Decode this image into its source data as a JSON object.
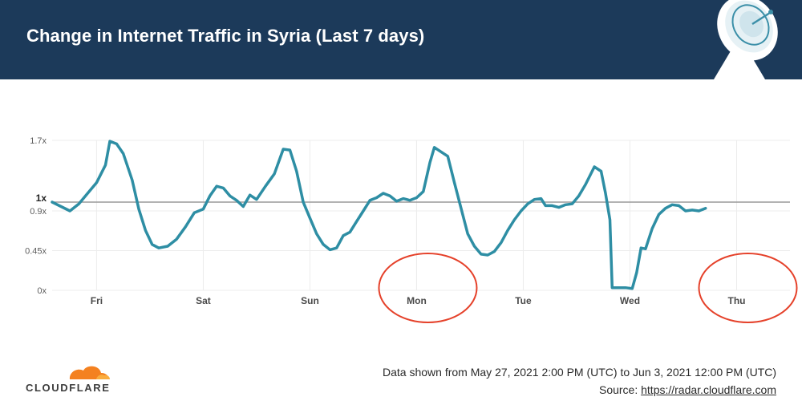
{
  "header": {
    "title": "Change in Internet Traffic in Syria (Last 7 days)"
  },
  "colors": {
    "header_bg": "#1c3a5a",
    "line": "#2e8ea4",
    "baseline": "#9a9a9a",
    "grid": "#ececec",
    "annotation": "#e5412a",
    "cloudflare_orange": "#f48120"
  },
  "icons": {
    "header_graphic": "satellite-dish-icon",
    "logo": "cloudflare-cloud-icon"
  },
  "chart_data": {
    "type": "line",
    "title": "Change in Internet Traffic in Syria (Last 7 days)",
    "xlabel": "",
    "ylabel": "",
    "x_start": "2021-05-27 14:00",
    "x_end": "2021-06-03 12:00",
    "x_tick_labels": [
      "Fri",
      "Sat",
      "Sun",
      "Mon",
      "Tue",
      "Wed",
      "Thu"
    ],
    "x_ticks": [
      "2021-05-28",
      "2021-05-29",
      "2021-05-30",
      "2021-05-31",
      "2021-06-01",
      "2021-06-02",
      "2021-06-03"
    ],
    "y_tick_labels": [
      "0x",
      "0.45x",
      "0.9x",
      "1x",
      "1.7x"
    ],
    "y_ticks": [
      0,
      0.45,
      0.9,
      1,
      1.7
    ],
    "ylim": [
      0,
      1.7
    ],
    "baseline": 1,
    "grid": true,
    "series": [
      {
        "points": [
          [
            "2021-05-27 14:00",
            1.0
          ],
          [
            "2021-05-27 16:00",
            0.95
          ],
          [
            "2021-05-27 18:00",
            0.9
          ],
          [
            "2021-05-27 20:00",
            0.98
          ],
          [
            "2021-05-27 22:00",
            1.1
          ],
          [
            "2021-05-28 00:00",
            1.22
          ],
          [
            "2021-05-28 02:00",
            1.42
          ],
          [
            "2021-05-28 03:00",
            1.69
          ],
          [
            "2021-05-28 04:30",
            1.66
          ],
          [
            "2021-05-28 06:00",
            1.55
          ],
          [
            "2021-05-28 08:00",
            1.25
          ],
          [
            "2021-05-28 09:30",
            0.92
          ],
          [
            "2021-05-28 11:00",
            0.68
          ],
          [
            "2021-05-28 12:30",
            0.52
          ],
          [
            "2021-05-28 14:00",
            0.48
          ],
          [
            "2021-05-28 16:00",
            0.5
          ],
          [
            "2021-05-28 18:00",
            0.58
          ],
          [
            "2021-05-28 20:00",
            0.72
          ],
          [
            "2021-05-28 22:00",
            0.88
          ],
          [
            "2021-05-29 00:00",
            0.92
          ],
          [
            "2021-05-29 01:30",
            1.07
          ],
          [
            "2021-05-29 03:00",
            1.18
          ],
          [
            "2021-05-29 04:30",
            1.16
          ],
          [
            "2021-05-29 06:00",
            1.07
          ],
          [
            "2021-05-29 07:30",
            1.02
          ],
          [
            "2021-05-29 09:00",
            0.95
          ],
          [
            "2021-05-29 10:30",
            1.08
          ],
          [
            "2021-05-29 12:00",
            1.03
          ],
          [
            "2021-05-29 14:00",
            1.18
          ],
          [
            "2021-05-29 16:00",
            1.32
          ],
          [
            "2021-05-29 18:00",
            1.6
          ],
          [
            "2021-05-29 19:30",
            1.59
          ],
          [
            "2021-05-29 21:00",
            1.35
          ],
          [
            "2021-05-29 22:30",
            1.0
          ],
          [
            "2021-05-30 00:00",
            0.82
          ],
          [
            "2021-05-30 01:30",
            0.64
          ],
          [
            "2021-05-30 03:00",
            0.52
          ],
          [
            "2021-05-30 04:30",
            0.46
          ],
          [
            "2021-05-30 06:00",
            0.48
          ],
          [
            "2021-05-30 07:30",
            0.62
          ],
          [
            "2021-05-30 09:00",
            0.66
          ],
          [
            "2021-05-30 10:30",
            0.78
          ],
          [
            "2021-05-30 12:00",
            0.9
          ],
          [
            "2021-05-30 13:30",
            1.02
          ],
          [
            "2021-05-30 15:00",
            1.05
          ],
          [
            "2021-05-30 16:30",
            1.1
          ],
          [
            "2021-05-30 18:00",
            1.07
          ],
          [
            "2021-05-30 19:30",
            1.01
          ],
          [
            "2021-05-30 21:00",
            1.04
          ],
          [
            "2021-05-30 22:30",
            1.02
          ],
          [
            "2021-05-31 00:00",
            1.05
          ],
          [
            "2021-05-31 01:30",
            1.12
          ],
          [
            "2021-05-31 03:00",
            1.45
          ],
          [
            "2021-05-31 04:00",
            1.62
          ],
          [
            "2021-05-31 05:30",
            1.57
          ],
          [
            "2021-05-31 07:00",
            1.52
          ],
          [
            "2021-05-31 08:30",
            1.22
          ],
          [
            "2021-05-31 10:00",
            0.93
          ],
          [
            "2021-05-31 11:30",
            0.64
          ],
          [
            "2021-05-31 13:00",
            0.5
          ],
          [
            "2021-05-31 14:30",
            0.41
          ],
          [
            "2021-05-31 16:00",
            0.4
          ],
          [
            "2021-05-31 17:30",
            0.44
          ],
          [
            "2021-05-31 19:00",
            0.54
          ],
          [
            "2021-05-31 20:30",
            0.68
          ],
          [
            "2021-05-31 22:00",
            0.8
          ],
          [
            "2021-05-31 23:30",
            0.9
          ],
          [
            "2021-06-01 01:00",
            0.98
          ],
          [
            "2021-06-01 02:30",
            1.03
          ],
          [
            "2021-06-01 04:00",
            1.04
          ],
          [
            "2021-06-01 05:00",
            0.96
          ],
          [
            "2021-06-01 06:30",
            0.96
          ],
          [
            "2021-06-01 08:00",
            0.94
          ],
          [
            "2021-06-01 09:30",
            0.97
          ],
          [
            "2021-06-01 11:00",
            0.98
          ],
          [
            "2021-06-01 12:30",
            1.07
          ],
          [
            "2021-06-01 14:00",
            1.2
          ],
          [
            "2021-06-01 16:00",
            1.4
          ],
          [
            "2021-06-01 17:30",
            1.35
          ],
          [
            "2021-06-01 18:30",
            1.1
          ],
          [
            "2021-06-01 19:30",
            0.8
          ],
          [
            "2021-06-01 20:00",
            0.03
          ],
          [
            "2021-06-01 23:00",
            0.03
          ],
          [
            "2021-06-02 00:30",
            0.02
          ],
          [
            "2021-06-02 01:30",
            0.2
          ],
          [
            "2021-06-02 02:30",
            0.48
          ],
          [
            "2021-06-02 03:30",
            0.47
          ],
          [
            "2021-06-02 05:00",
            0.7
          ],
          [
            "2021-06-02 06:30",
            0.86
          ],
          [
            "2021-06-02 08:00",
            0.93
          ],
          [
            "2021-06-02 09:30",
            0.97
          ],
          [
            "2021-06-02 11:00",
            0.96
          ],
          [
            "2021-06-02 12:30",
            0.9
          ],
          [
            "2021-06-02 14:00",
            0.91
          ],
          [
            "2021-06-02 15:30",
            0.9
          ],
          [
            "2021-06-02 17:00",
            0.93
          ]
        ]
      }
    ]
  },
  "annotations": {
    "circles": [
      {
        "target": "Mon"
      },
      {
        "target": "Thu"
      }
    ]
  },
  "footer": {
    "logo_text": "CLOUDFLARE",
    "data_range": "Data shown from May 27, 2021 2:00 PM (UTC) to Jun 3, 2021 12:00 PM (UTC)",
    "source_label": "Source:",
    "source_link": "https://radar.cloudflare.com"
  }
}
